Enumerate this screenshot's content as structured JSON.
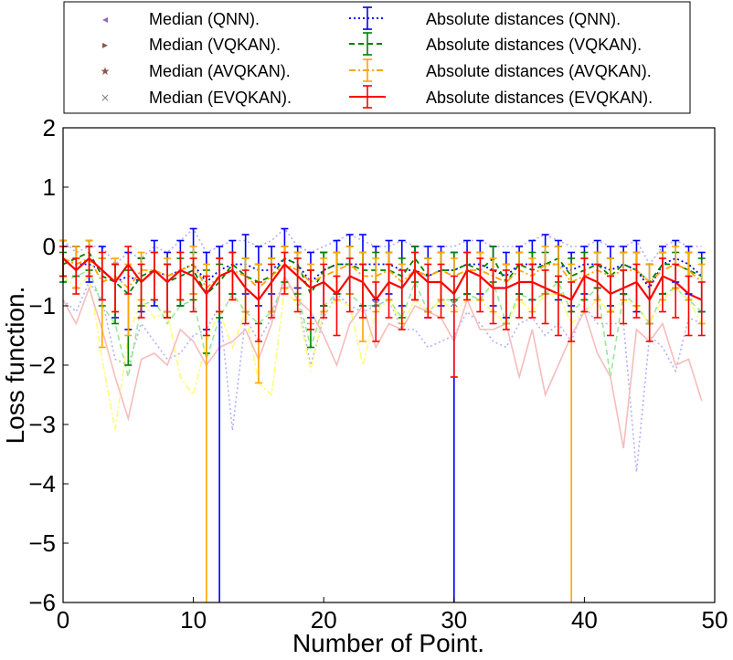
{
  "chart_data": {
    "type": "line",
    "xlabel": "Number of Point.",
    "ylabel": "Loss function.",
    "xlim": [
      0,
      50
    ],
    "ylim": [
      -6,
      2
    ],
    "xticks": [
      "0",
      "10",
      "20",
      "30",
      "40",
      "50"
    ],
    "yticks": [
      "2",
      "1",
      "0",
      "−1",
      "−2",
      "−3",
      "−4",
      "−5",
      "−6"
    ],
    "xtick_values": [
      0,
      10,
      20,
      30,
      40,
      50
    ],
    "ytick_values": [
      2,
      1,
      0,
      -1,
      -2,
      -3,
      -4,
      -5,
      -6
    ],
    "legend": {
      "placement": "top, outside plot, two columns",
      "entries": [
        {
          "label": "Median (QNN).",
          "color": "#9467bd",
          "marker": "tri-left"
        },
        {
          "label": "Median (VQKAN).",
          "color": "#8c564b",
          "marker": "tri-right"
        },
        {
          "label": "Median (AVQKAN).",
          "color": "#8c564b",
          "marker": "star"
        },
        {
          "label": "Median (EVQKAN).",
          "color": "#7f7f7f",
          "marker": "x"
        },
        {
          "label": "Absolute distances (QNN).",
          "color": "#0000ff",
          "style": "dotted"
        },
        {
          "label": "Absolute distances (VQKAN).",
          "color": "#008000",
          "style": "dashed"
        },
        {
          "label": "Absolute distances (AVQKAN).",
          "color": "#ffa500",
          "style": "dashdot"
        },
        {
          "label": "Absolute distances (EVQKAN).",
          "color": "#ff0000",
          "style": "solid"
        }
      ]
    },
    "x": [
      0,
      1,
      2,
      3,
      4,
      5,
      6,
      7,
      8,
      9,
      10,
      11,
      12,
      13,
      14,
      15,
      16,
      17,
      18,
      19,
      20,
      21,
      22,
      23,
      24,
      25,
      26,
      27,
      28,
      29,
      30,
      31,
      32,
      33,
      34,
      35,
      36,
      37,
      38,
      39,
      40,
      41,
      42,
      43,
      44,
      45,
      46,
      47,
      48,
      49
    ],
    "series": [
      {
        "name": "Absolute distances (QNN).",
        "color": "#0000ff",
        "dash": "2,3",
        "values": [
          -0.2,
          -0.3,
          -0.3,
          -0.4,
          -0.6,
          -0.5,
          -0.6,
          -0.4,
          -0.5,
          -0.4,
          -0.3,
          -0.6,
          -0.4,
          -0.3,
          -0.3,
          -0.4,
          -0.4,
          -0.2,
          -0.3,
          -0.6,
          -0.4,
          -0.3,
          -0.3,
          -0.3,
          -0.3,
          -0.3,
          -0.4,
          -0.4,
          -0.5,
          -0.4,
          -0.4,
          -0.3,
          -0.3,
          -0.4,
          -0.5,
          -0.3,
          -0.3,
          -0.3,
          -0.3,
          -0.4,
          -0.3,
          -0.3,
          -0.4,
          -0.3,
          -0.4,
          -0.7,
          -0.3,
          -0.2,
          -0.3,
          -0.5
        ],
        "err_low": [
          0.3,
          0.4,
          0.3,
          0.5,
          0.6,
          0.9,
          0.5,
          0.6,
          0.6,
          0.6,
          0.5,
          0.8,
          6.0,
          0.5,
          0.5,
          0.6,
          0.4,
          0.5,
          0.4,
          0.6,
          0.6,
          0.5,
          0.5,
          0.7,
          0.6,
          0.5,
          0.6,
          0.5,
          0.7,
          0.6,
          5.6,
          0.5,
          0.5,
          0.6,
          0.7,
          0.5,
          0.6,
          0.5,
          0.6,
          0.6,
          0.5,
          0.4,
          0.6,
          0.5,
          0.7,
          0.6,
          0.5,
          0.4,
          0.5,
          0.6
        ],
        "err_high": [
          0.3,
          0.3,
          0.3,
          0.4,
          0.3,
          0.4,
          0.4,
          0.5,
          0.4,
          0.5,
          0.6,
          0.5,
          0.4,
          0.4,
          0.5,
          0.4,
          0.4,
          0.5,
          0.3,
          0.5,
          0.3,
          0.4,
          0.5,
          0.5,
          0.3,
          0.4,
          0.5,
          0.4,
          0.5,
          0.4,
          0.3,
          0.4,
          0.4,
          0.4,
          0.4,
          0.3,
          0.4,
          0.5,
          0.4,
          0.3,
          0.3,
          0.4,
          0.4,
          0.3,
          0.5,
          0.4,
          0.3,
          0.3,
          0.3,
          0.4
        ]
      },
      {
        "name": "Absolute distances (VQKAN).",
        "color": "#008000",
        "dash": "6,4",
        "values": [
          -0.3,
          -0.2,
          -0.1,
          -0.5,
          -0.6,
          -0.8,
          -0.5,
          -0.4,
          -0.6,
          -0.5,
          -0.4,
          -0.8,
          -0.6,
          -0.3,
          -0.5,
          -0.6,
          -0.5,
          -0.2,
          -0.3,
          -0.8,
          -0.4,
          -0.3,
          -0.3,
          -0.4,
          -0.4,
          -0.4,
          -0.5,
          -0.2,
          -0.5,
          -0.4,
          -0.4,
          -0.3,
          -0.4,
          -0.2,
          -0.6,
          -0.3,
          -0.4,
          -0.3,
          -0.2,
          -0.5,
          -0.4,
          -0.3,
          -0.5,
          -0.3,
          -0.4,
          -0.6,
          -0.3,
          -0.3,
          -0.4,
          -0.5
        ],
        "err_low": [
          0.3,
          0.3,
          0.3,
          0.5,
          0.7,
          1.2,
          0.5,
          0.5,
          0.6,
          0.5,
          0.5,
          1.0,
          0.6,
          0.5,
          0.6,
          0.7,
          0.6,
          0.4,
          0.5,
          0.9,
          0.6,
          0.5,
          0.5,
          0.6,
          0.6,
          0.5,
          0.7,
          0.4,
          0.6,
          0.5,
          0.5,
          0.5,
          0.5,
          0.4,
          0.7,
          0.5,
          0.5,
          0.5,
          0.4,
          0.6,
          0.5,
          0.4,
          0.6,
          0.5,
          0.6,
          0.7,
          0.5,
          0.4,
          0.5,
          0.6
        ],
        "err_high": [
          0.2,
          0.2,
          0.2,
          0.3,
          0.3,
          0.4,
          0.3,
          0.3,
          0.3,
          0.3,
          0.3,
          0.4,
          0.3,
          0.2,
          0.3,
          0.3,
          0.3,
          0.2,
          0.2,
          0.4,
          0.3,
          0.2,
          0.3,
          0.3,
          0.3,
          0.3,
          0.3,
          0.2,
          0.3,
          0.3,
          0.3,
          0.2,
          0.3,
          0.2,
          0.3,
          0.2,
          0.3,
          0.2,
          0.2,
          0.3,
          0.3,
          0.2,
          0.3,
          0.2,
          0.3,
          0.3,
          0.2,
          0.2,
          0.3,
          0.3
        ]
      },
      {
        "name": "Absolute distances (AVQKAN).",
        "color": "#ffa500",
        "dash": "7,3,2,3",
        "values": [
          -0.2,
          -0.3,
          -0.2,
          -0.6,
          -0.5,
          -0.7,
          -0.4,
          -0.4,
          -0.5,
          -0.4,
          -0.3,
          -0.7,
          -0.5,
          -0.4,
          -0.5,
          -0.7,
          -0.5,
          -0.3,
          -0.4,
          -0.6,
          -0.5,
          -0.4,
          -0.3,
          -0.5,
          -0.5,
          -0.4,
          -0.6,
          -0.4,
          -0.5,
          -0.4,
          -0.5,
          -0.4,
          -0.4,
          -0.5,
          -0.6,
          -0.4,
          -0.5,
          -0.3,
          -0.3,
          -0.6,
          -0.5,
          -0.4,
          -0.5,
          -0.4,
          -0.4,
          -0.6,
          -0.4,
          -0.3,
          -0.4,
          -0.6
        ],
        "err_low": [
          0.3,
          0.4,
          0.3,
          1.1,
          0.6,
          0.8,
          0.5,
          0.5,
          0.6,
          0.5,
          0.5,
          5.3,
          0.6,
          0.5,
          0.6,
          1.6,
          0.6,
          0.4,
          0.5,
          0.7,
          0.6,
          0.5,
          0.5,
          1.1,
          0.6,
          0.5,
          0.7,
          0.5,
          0.6,
          0.5,
          0.6,
          0.5,
          0.5,
          0.6,
          0.7,
          0.5,
          0.6,
          0.5,
          0.5,
          5.4,
          0.6,
          0.5,
          0.6,
          0.5,
          0.6,
          0.7,
          0.5,
          0.4,
          0.5,
          0.7
        ],
        "err_high": [
          0.3,
          0.3,
          0.3,
          0.4,
          0.3,
          0.4,
          0.3,
          0.3,
          0.3,
          0.3,
          0.3,
          0.4,
          0.3,
          0.3,
          0.3,
          0.4,
          0.3,
          0.3,
          0.3,
          0.3,
          0.3,
          0.3,
          0.3,
          0.4,
          0.3,
          0.3,
          0.3,
          0.3,
          0.3,
          0.3,
          0.3,
          0.3,
          0.3,
          0.3,
          0.3,
          0.3,
          0.3,
          0.3,
          0.3,
          0.3,
          0.3,
          0.3,
          0.3,
          0.3,
          0.3,
          0.3,
          0.3,
          0.3,
          0.3,
          0.3
        ]
      },
      {
        "name": "Absolute distances (EVQKAN).",
        "color": "#ff0000",
        "dash": "",
        "values": [
          -0.2,
          -0.4,
          -0.2,
          -0.4,
          -0.6,
          -0.3,
          -0.6,
          -0.4,
          -0.6,
          -0.4,
          -0.5,
          -0.8,
          -0.5,
          -0.4,
          -0.7,
          -0.9,
          -0.6,
          -0.3,
          -0.5,
          -0.7,
          -0.6,
          -0.8,
          -0.5,
          -0.6,
          -0.9,
          -0.6,
          -0.7,
          -0.4,
          -0.6,
          -0.6,
          -0.8,
          -0.4,
          -0.5,
          -0.7,
          -0.7,
          -0.6,
          -0.6,
          -0.7,
          -0.8,
          -0.9,
          -0.5,
          -0.6,
          -0.8,
          -0.7,
          -0.6,
          -0.9,
          -0.5,
          -0.6,
          -0.8,
          -0.9
        ],
        "err_low": [
          0.3,
          0.4,
          0.3,
          0.5,
          0.5,
          0.5,
          0.6,
          0.5,
          0.6,
          0.5,
          0.6,
          0.7,
          0.6,
          0.5,
          0.6,
          0.7,
          0.6,
          0.5,
          0.6,
          0.7,
          0.6,
          0.7,
          0.6,
          0.6,
          0.7,
          0.6,
          0.7,
          0.5,
          0.6,
          0.6,
          1.4,
          0.5,
          0.6,
          0.6,
          0.7,
          0.6,
          0.6,
          0.6,
          0.7,
          0.7,
          0.6,
          0.6,
          0.7,
          0.6,
          0.6,
          0.7,
          0.6,
          0.6,
          0.7,
          0.6
        ],
        "err_high": [
          0.2,
          0.2,
          0.2,
          0.3,
          0.3,
          0.3,
          0.3,
          0.3,
          0.3,
          0.3,
          0.3,
          0.3,
          0.3,
          0.3,
          0.3,
          0.3,
          0.3,
          0.2,
          0.3,
          0.3,
          0.3,
          0.3,
          0.3,
          0.3,
          0.3,
          0.3,
          0.3,
          0.3,
          0.3,
          0.3,
          0.3,
          0.3,
          0.3,
          0.3,
          0.3,
          0.3,
          0.3,
          0.3,
          0.3,
          0.3,
          0.3,
          0.3,
          0.3,
          0.3,
          0.3,
          0.3,
          0.3,
          0.3,
          0.3,
          0.3
        ]
      }
    ],
    "faint_series": [
      {
        "name": "QNN lower bound",
        "color": "#b0b0ff",
        "dash": "2,3",
        "values": [
          -0.9,
          -1.1,
          -0.6,
          -0.9,
          -1.9,
          -2.0,
          -1.3,
          -1.6,
          -1.9,
          -1.8,
          -1.5,
          -1.4,
          -1.0,
          -3.1,
          -1.2,
          -1.6,
          -1.2,
          -0.5,
          -0.9,
          -2.0,
          -1.2,
          -0.8,
          -1.0,
          -1.1,
          -1.0,
          -0.9,
          -1.4,
          -1.4,
          -1.7,
          -1.6,
          -1.5,
          -1.1,
          -1.3,
          -1.6,
          -1.7,
          -1.3,
          -1.2,
          -1.5,
          -1.3,
          -1.6,
          -1.0,
          -1.3,
          -1.3,
          -1.3,
          -3.8,
          -1.5,
          -1.7,
          -2.1,
          -1.2,
          -1.3
        ]
      },
      {
        "name": "QNN upper bound",
        "color": "#b0b0ff",
        "dash": "2,3",
        "values": [
          0.1,
          -0.1,
          0.0,
          0.0,
          -0.3,
          -0.1,
          -0.2,
          0.0,
          -0.1,
          0.1,
          0.3,
          -0.1,
          0.0,
          0.1,
          0.1,
          0.0,
          0.1,
          0.3,
          0.0,
          -0.1,
          0.0,
          0.1,
          0.2,
          0.1,
          0.0,
          0.0,
          0.1,
          0.0,
          0.0,
          0.0,
          0.0,
          0.1,
          0.1,
          0.0,
          0.0,
          0.0,
          0.1,
          0.2,
          0.1,
          0.0,
          0.0,
          0.1,
          0.0,
          0.0,
          0.1,
          -0.3,
          0.0,
          0.1,
          0.0,
          0.0
        ]
      },
      {
        "name": "VQKAN lower bound",
        "color": "#98e898",
        "dash": "6,4",
        "values": [
          -0.6,
          -0.5,
          -0.4,
          -1.0,
          -1.3,
          -2.2,
          -1.0,
          -0.9,
          -1.3,
          -1.0,
          -0.9,
          -1.9,
          -1.2,
          -0.8,
          -1.1,
          -1.3,
          -1.1,
          -0.6,
          -0.8,
          -1.7,
          -1.0,
          -0.8,
          -0.8,
          -1.0,
          -1.0,
          -0.9,
          -1.2,
          -0.6,
          -1.1,
          -0.9,
          -0.9,
          -0.8,
          -0.9,
          -0.6,
          -1.3,
          -0.8,
          -0.9,
          -0.8,
          -0.6,
          -1.1,
          -0.9,
          -0.7,
          -2.2,
          -0.8,
          -1.0,
          -1.3,
          -0.8,
          -0.7,
          -0.9,
          -1.1
        ]
      },
      {
        "name": "AVQKAN lower bound",
        "color": "#ffff70",
        "dash": "7,3,2,3",
        "values": [
          -0.5,
          -0.7,
          -0.5,
          -1.9,
          -3.1,
          -1.5,
          -0.9,
          -1.2,
          -1.1,
          -2.2,
          -2.5,
          -1.6,
          -1.1,
          -1.7,
          -1.1,
          -2.3,
          -2.5,
          -0.7,
          -1.0,
          -2.1,
          -1.1,
          -0.9,
          -1.0,
          -2.0,
          -1.1,
          -0.9,
          -1.3,
          -0.9,
          -1.1,
          -0.9,
          -1.1,
          -0.9,
          -0.9,
          -1.1,
          -1.3,
          -0.9,
          -1.1,
          -0.8,
          -0.8,
          -1.3,
          -1.1,
          -0.9,
          -1.1,
          -0.9,
          -1.0,
          -1.3,
          -0.9,
          -0.7,
          -0.9,
          -1.3
        ]
      },
      {
        "name": "EVQKAN lower bound",
        "color": "#f7bcbc",
        "dash": "",
        "values": [
          -0.9,
          -1.3,
          -0.7,
          -1.4,
          -2.2,
          -2.9,
          -1.9,
          -1.8,
          -2.0,
          -1.4,
          -1.6,
          -2.0,
          -1.7,
          -1.6,
          -1.4,
          -1.9,
          -1.3,
          -0.5,
          -0.9,
          -1.1,
          -1.5,
          -2.0,
          -1.3,
          -1.0,
          -1.7,
          -1.3,
          -1.4,
          -1.0,
          -1.1,
          -1.2,
          -1.6,
          -0.9,
          -1.4,
          -1.4,
          -1.3,
          -2.2,
          -1.4,
          -2.5,
          -2.0,
          -1.5,
          -1.1,
          -1.8,
          -2.2,
          -3.4,
          -1.4,
          -1.6,
          -1.3,
          -2.0,
          -1.9,
          -2.6
        ]
      }
    ],
    "median_markers": [
      {
        "name": "Median (EVQKAN).",
        "color": "#7f7f7f",
        "symbol": "×",
        "points": [
          [
            24,
            -0.95
          ],
          [
            30,
            -0.95
          ]
        ]
      }
    ]
  }
}
